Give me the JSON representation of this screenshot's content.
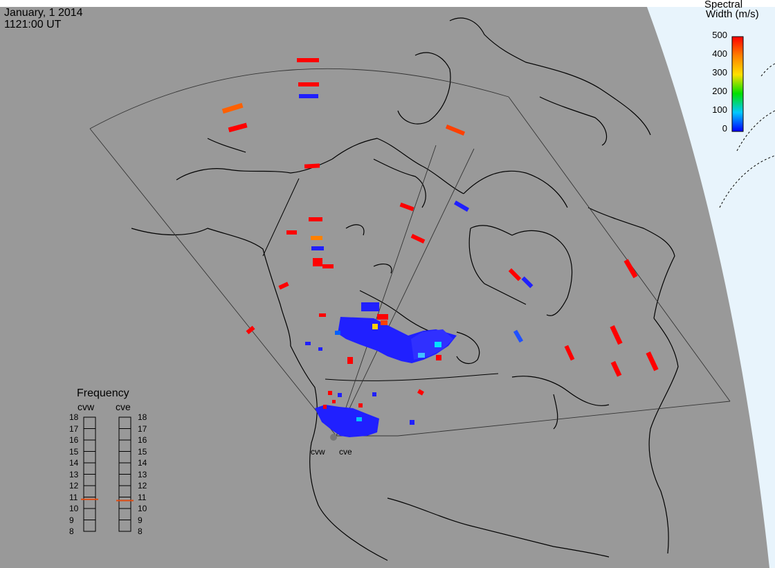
{
  "header": {
    "date": "January, 1 2014",
    "time": "1121:00 UT"
  },
  "colorbar": {
    "title_line1": "Spectral",
    "title_line2": "Width (m/s)",
    "ticks": [
      "500",
      "400",
      "300",
      "200",
      "100",
      "0"
    ],
    "range": [
      0,
      500
    ],
    "colors": [
      "#0000ff",
      "#00c8ff",
      "#00e000",
      "#ffe000",
      "#ff8000",
      "#ff0000"
    ]
  },
  "frequency": {
    "title": "Frequency",
    "radars": [
      "cvw",
      "cve"
    ],
    "ticks": [
      "18",
      "17",
      "16",
      "15",
      "14",
      "13",
      "12",
      "11",
      "10",
      "9",
      "8"
    ],
    "unit_range": [
      8,
      18
    ],
    "current": {
      "cvw": 10.8,
      "cve": 10.7
    },
    "marker_color": "#e04a10"
  },
  "sites": [
    "cvw",
    "cve"
  ],
  "map_colors": {
    "land": "#999999",
    "night_edge": "#e8f4fc",
    "coast": "#000000"
  }
}
